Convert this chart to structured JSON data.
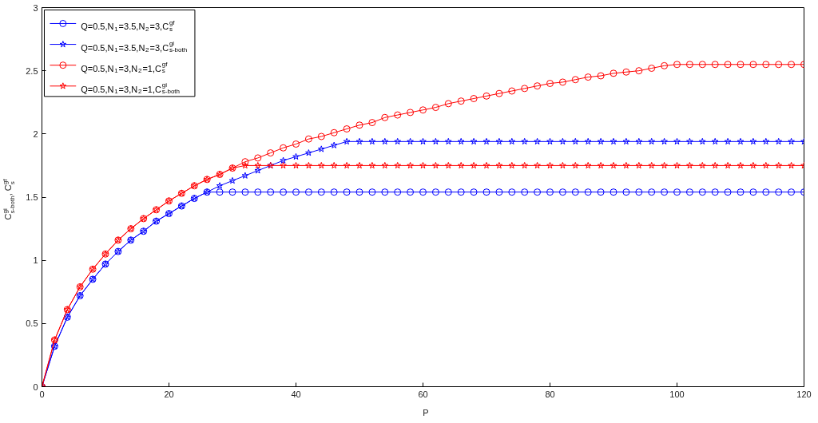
{
  "chart_data": {
    "type": "line",
    "xlabel": "P",
    "ylabel": "C$^{gi}$$_{s-both}$, C$^{gf}$$_{s}$",
    "x": [
      0,
      2,
      4,
      6,
      8,
      10,
      12,
      14,
      16,
      18,
      20,
      22,
      24,
      26,
      28,
      30,
      32,
      34,
      36,
      38,
      40,
      42,
      44,
      46,
      48,
      50,
      52,
      54,
      56,
      58,
      60,
      62,
      64,
      66,
      68,
      70,
      72,
      74,
      76,
      78,
      80,
      82,
      84,
      86,
      88,
      90,
      92,
      94,
      96,
      98,
      100,
      102,
      104,
      106,
      108,
      110,
      112,
      114,
      116,
      118,
      120
    ],
    "series": [
      {
        "name": "Q=0.5,N$_{1}$=3.5,N$_{2}$=3,C$^{gf}$$_{s}$",
        "color": "#0000ff",
        "marker": "circle",
        "values": [
          0,
          0.32,
          0.55,
          0.72,
          0.85,
          0.97,
          1.07,
          1.16,
          1.23,
          1.31,
          1.37,
          1.43,
          1.49,
          1.54,
          1.54,
          1.54,
          1.54,
          1.54,
          1.54,
          1.54,
          1.54,
          1.54,
          1.54,
          1.54,
          1.54,
          1.54,
          1.54,
          1.54,
          1.54,
          1.54,
          1.54,
          1.54,
          1.54,
          1.54,
          1.54,
          1.54,
          1.54,
          1.54,
          1.54,
          1.54,
          1.54,
          1.54,
          1.54,
          1.54,
          1.54,
          1.54,
          1.54,
          1.54,
          1.54,
          1.54,
          1.54,
          1.54,
          1.54,
          1.54,
          1.54,
          1.54,
          1.54,
          1.54,
          1.54,
          1.54,
          1.54
        ]
      },
      {
        "name": "Q=0.5,N$_{1}$=3.5,N$_{2}$=3,C$^{gi}$$_{s-both}$",
        "color": "#0000ff",
        "marker": "star",
        "values": [
          0,
          0.32,
          0.55,
          0.72,
          0.85,
          0.97,
          1.07,
          1.16,
          1.23,
          1.31,
          1.37,
          1.43,
          1.49,
          1.54,
          1.59,
          1.63,
          1.67,
          1.71,
          1.75,
          1.79,
          1.82,
          1.85,
          1.88,
          1.91,
          1.94,
          1.94,
          1.94,
          1.94,
          1.94,
          1.94,
          1.94,
          1.94,
          1.94,
          1.94,
          1.94,
          1.94,
          1.94,
          1.94,
          1.94,
          1.94,
          1.94,
          1.94,
          1.94,
          1.94,
          1.94,
          1.94,
          1.94,
          1.94,
          1.94,
          1.94,
          1.94,
          1.94,
          1.94,
          1.94,
          1.94,
          1.94,
          1.94,
          1.94,
          1.94,
          1.94,
          1.94
        ]
      },
      {
        "name": "Q=0.5,N$_{1}$=3,N$_{2}$=1,C$^{gf}$$_{s}$",
        "color": "#ff0000",
        "marker": "circle",
        "values": [
          0,
          0.37,
          0.61,
          0.79,
          0.93,
          1.05,
          1.16,
          1.25,
          1.33,
          1.4,
          1.47,
          1.53,
          1.59,
          1.64,
          1.68,
          1.73,
          1.78,
          1.81,
          1.85,
          1.89,
          1.92,
          1.96,
          1.98,
          2.01,
          2.04,
          2.07,
          2.09,
          2.13,
          2.15,
          2.17,
          2.19,
          2.21,
          2.24,
          2.26,
          2.28,
          2.3,
          2.32,
          2.34,
          2.36,
          2.38,
          2.4,
          2.41,
          2.43,
          2.45,
          2.46,
          2.48,
          2.49,
          2.5,
          2.52,
          2.54,
          2.55,
          2.55,
          2.55,
          2.55,
          2.55,
          2.55,
          2.55,
          2.55,
          2.55,
          2.55,
          2.55
        ]
      },
      {
        "name": "Q=0.5,N$_{1}$=3,N$_{2}$=1,C$^{gi}$$_{s-both}$",
        "color": "#ff0000",
        "marker": "star",
        "values": [
          0,
          0.37,
          0.61,
          0.79,
          0.93,
          1.05,
          1.16,
          1.25,
          1.33,
          1.4,
          1.47,
          1.53,
          1.59,
          1.64,
          1.68,
          1.73,
          1.75,
          1.75,
          1.75,
          1.75,
          1.75,
          1.75,
          1.75,
          1.75,
          1.75,
          1.75,
          1.75,
          1.75,
          1.75,
          1.75,
          1.75,
          1.75,
          1.75,
          1.75,
          1.75,
          1.75,
          1.75,
          1.75,
          1.75,
          1.75,
          1.75,
          1.75,
          1.75,
          1.75,
          1.75,
          1.75,
          1.75,
          1.75,
          1.75,
          1.75,
          1.75,
          1.75,
          1.75,
          1.75,
          1.75,
          1.75,
          1.75,
          1.75,
          1.75,
          1.75,
          1.75
        ]
      }
    ],
    "xlim": [
      0,
      120
    ],
    "ylim": [
      0,
      3
    ],
    "xticks": [
      0,
      20,
      40,
      60,
      80,
      100,
      120
    ],
    "yticks": [
      0,
      0.5,
      1,
      1.5,
      2,
      2.5,
      3
    ],
    "grid": false,
    "legend": "top left",
    "line_style": "solid"
  }
}
